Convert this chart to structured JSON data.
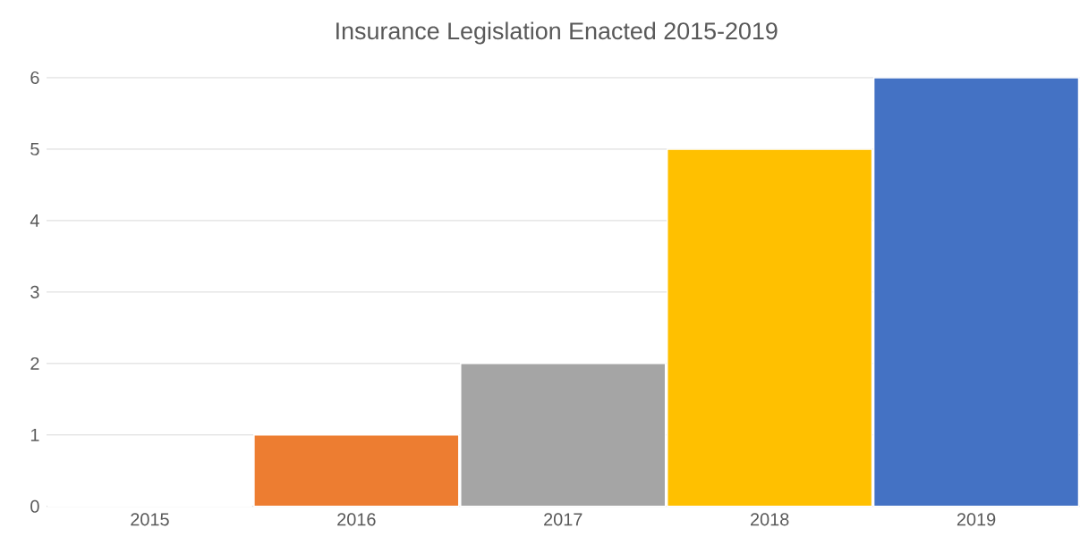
{
  "chart_data": {
    "type": "bar",
    "title": "Insurance Legislation Enacted 2015-2019",
    "categories": [
      "2015",
      "2016",
      "2017",
      "2018",
      "2019"
    ],
    "values": [
      0,
      1,
      2,
      5,
      6
    ],
    "colors": [
      "#4472c4",
      "#ed7d31",
      "#a5a5a5",
      "#ffc000",
      "#4472c4"
    ],
    "ylim": [
      0,
      6
    ],
    "yticks": [
      0,
      1,
      2,
      3,
      4,
      5,
      6
    ],
    "grid": "y"
  }
}
